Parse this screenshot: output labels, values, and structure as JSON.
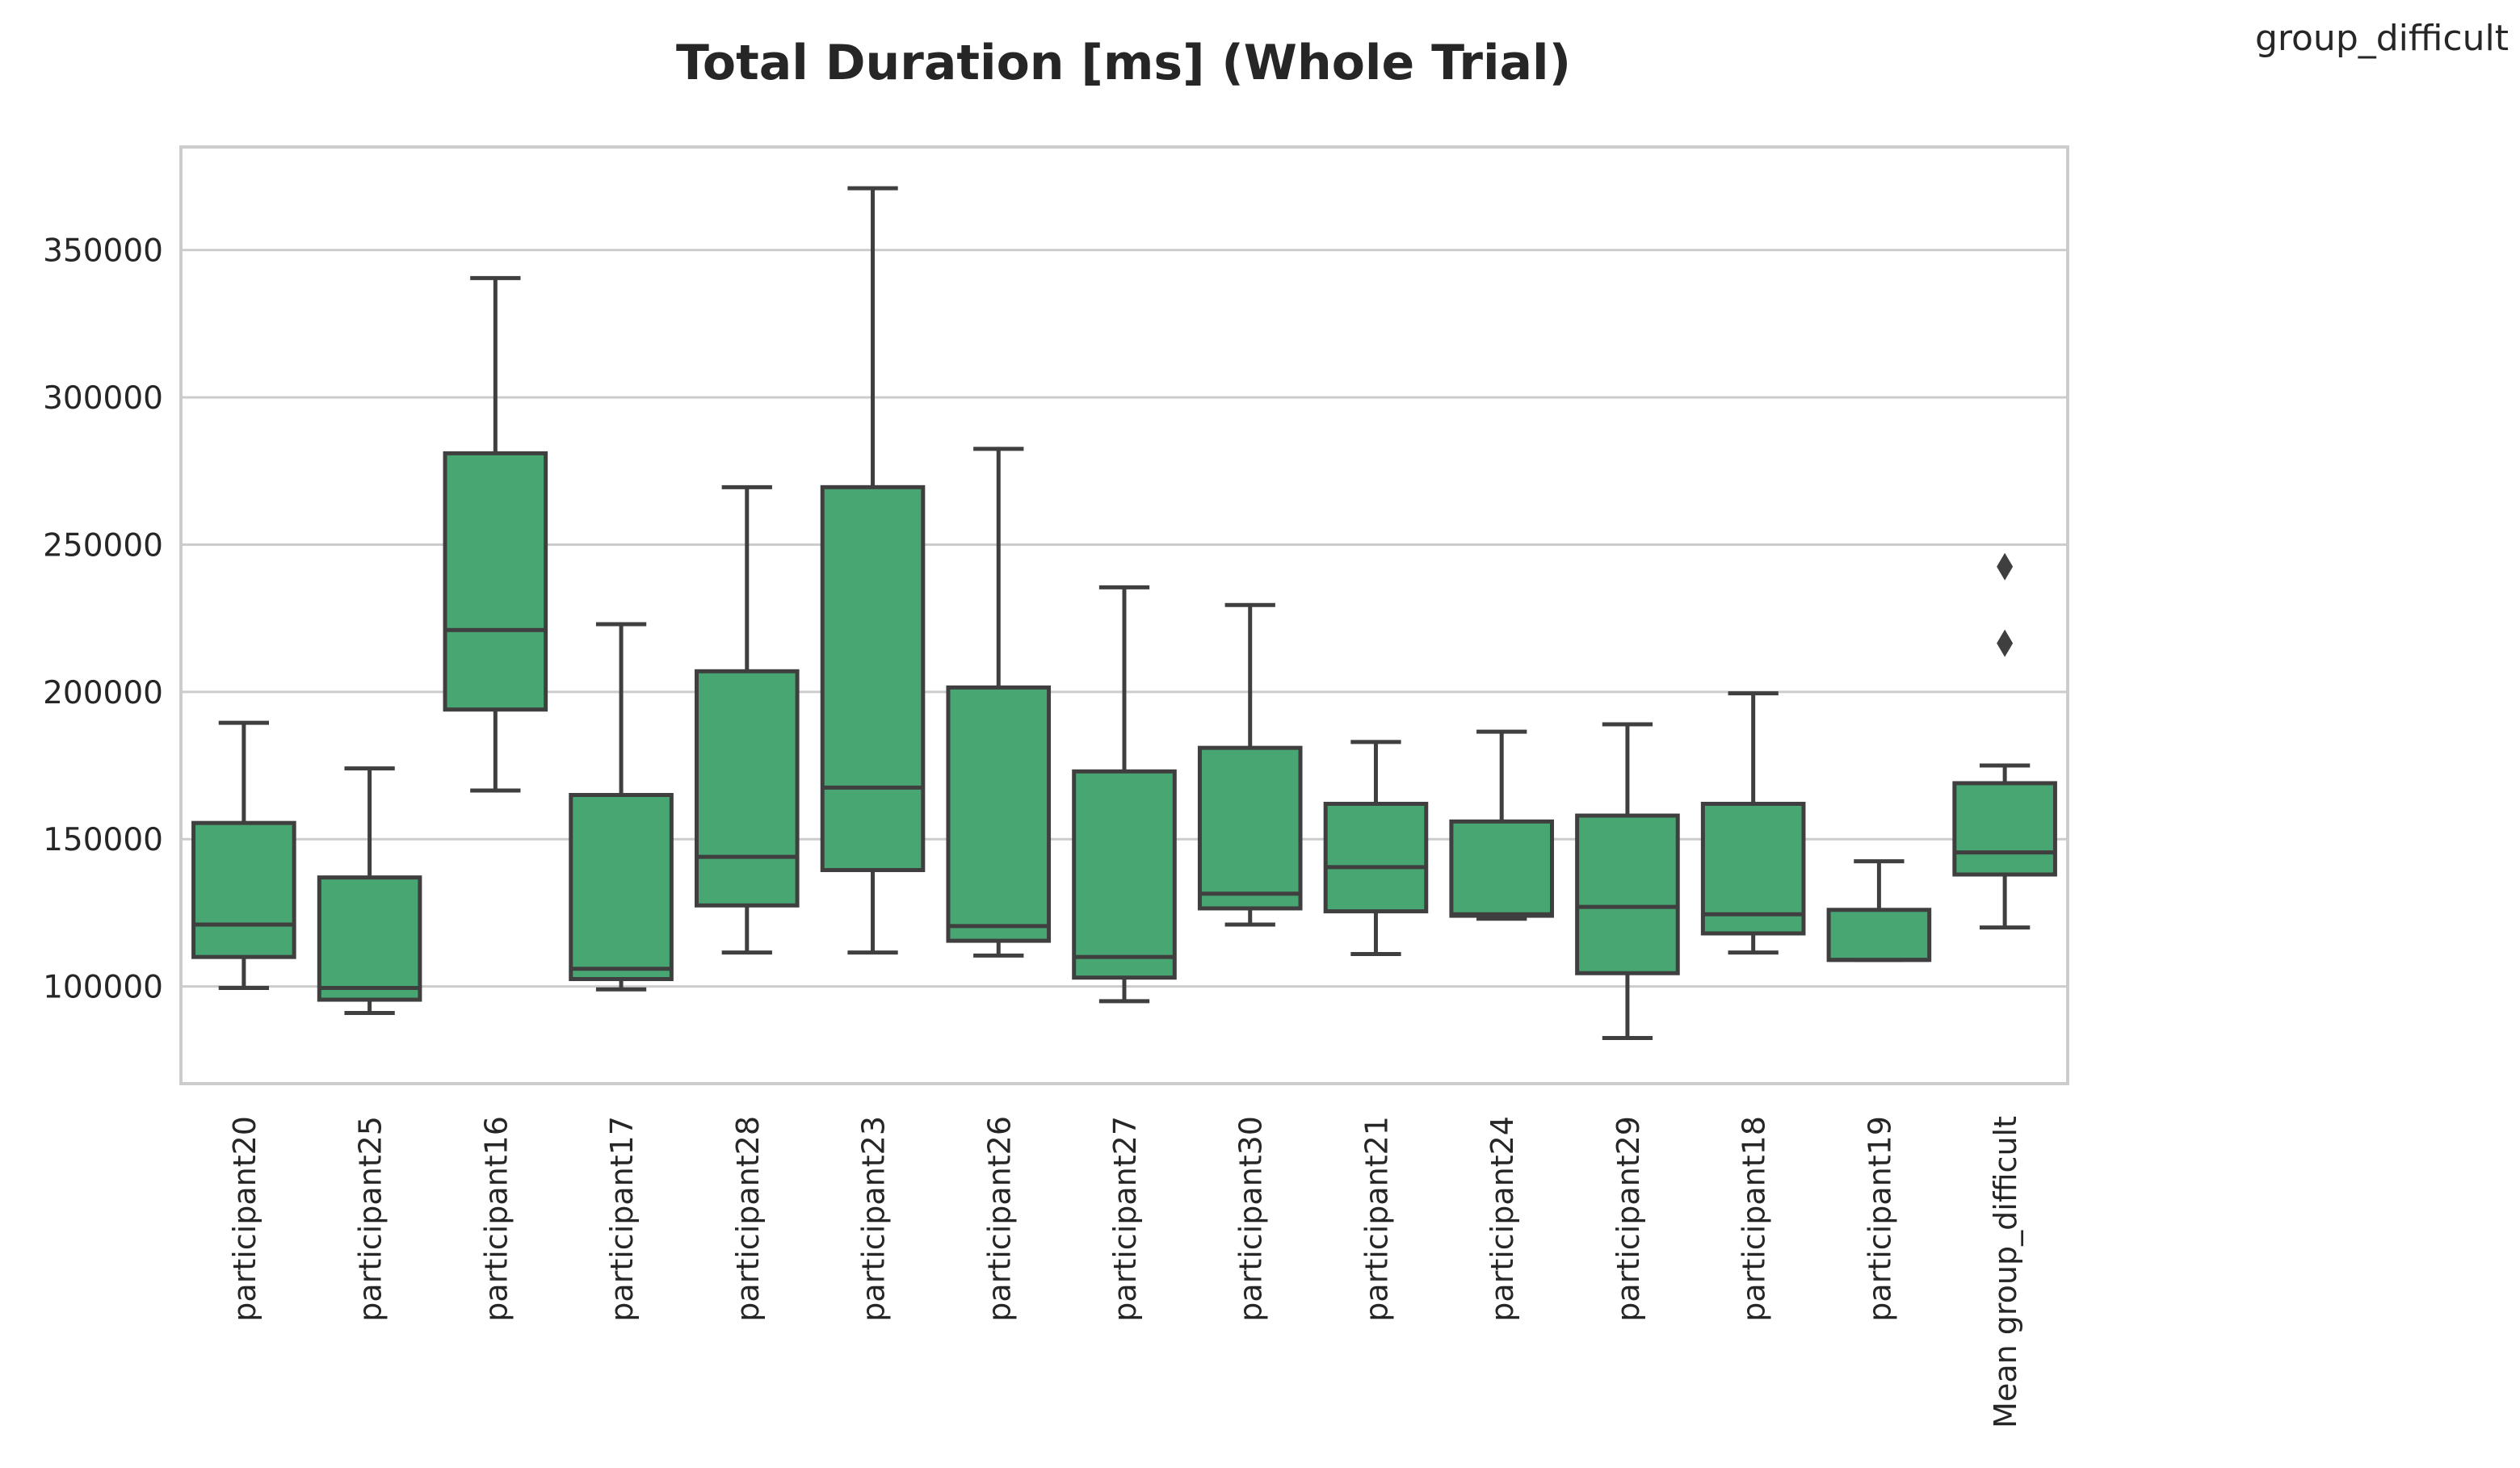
{
  "corner_label": "group_difficult",
  "chart_data": {
    "type": "box",
    "title": "Total Duration [ms] (Whole Trial)",
    "xlabel": "",
    "ylabel": "",
    "ylim": [
      67000,
      385000
    ],
    "yticks": [
      100000,
      150000,
      200000,
      250000,
      300000,
      350000
    ],
    "grid": "horizontal",
    "box_color": "#48A672",
    "line_color": "#3f3f3f",
    "categories": [
      "participant20",
      "participant25",
      "participant16",
      "participant17",
      "participant28",
      "participant23",
      "participant26",
      "participant27",
      "participant30",
      "participant21",
      "participant24",
      "participant29",
      "participant18",
      "participant19",
      "Mean group_difficult"
    ],
    "boxes": [
      {
        "whislo": 99500,
        "q1": 110000,
        "med": 121000,
        "q3": 155500,
        "whishi": 189500,
        "fliers": []
      },
      {
        "whislo": 91000,
        "q1": 95500,
        "med": 99500,
        "q3": 137000,
        "whishi": 174000,
        "fliers": []
      },
      {
        "whislo": 166500,
        "q1": 194000,
        "med": 221000,
        "q3": 281000,
        "whishi": 340500,
        "fliers": []
      },
      {
        "whislo": 99000,
        "q1": 102500,
        "med": 106000,
        "q3": 165000,
        "whishi": 223000,
        "fliers": []
      },
      {
        "whislo": 111500,
        "q1": 127500,
        "med": 144000,
        "q3": 207000,
        "whishi": 269500,
        "fliers": []
      },
      {
        "whislo": 111500,
        "q1": 139500,
        "med": 167500,
        "q3": 269500,
        "whishi": 371000,
        "fliers": []
      },
      {
        "whislo": 110500,
        "q1": 115500,
        "med": 120500,
        "q3": 201500,
        "whishi": 282500,
        "fliers": []
      },
      {
        "whislo": 95000,
        "q1": 103000,
        "med": 110000,
        "q3": 173000,
        "whishi": 235500,
        "fliers": []
      },
      {
        "whislo": 121000,
        "q1": 126500,
        "med": 131500,
        "q3": 181000,
        "whishi": 229500,
        "fliers": []
      },
      {
        "whislo": 111000,
        "q1": 125500,
        "med": 140500,
        "q3": 162000,
        "whishi": 183000,
        "fliers": []
      },
      {
        "whislo": 123000,
        "q1": 124000,
        "med": 124500,
        "q3": 156000,
        "whishi": 186500,
        "fliers": []
      },
      {
        "whislo": 82500,
        "q1": 104500,
        "med": 127000,
        "q3": 158000,
        "whishi": 189000,
        "fliers": []
      },
      {
        "whislo": 111500,
        "q1": 118000,
        "med": 124500,
        "q3": 162000,
        "whishi": 199500,
        "fliers": []
      },
      {
        "whislo": 109000,
        "q1": 109000,
        "med": 109000,
        "q3": 126000,
        "whishi": 142500,
        "fliers": []
      },
      {
        "whislo": 120000,
        "q1": 138000,
        "med": 145500,
        "q3": 169000,
        "whishi": 175000,
        "fliers": [
          216500,
          242500
        ]
      }
    ]
  }
}
